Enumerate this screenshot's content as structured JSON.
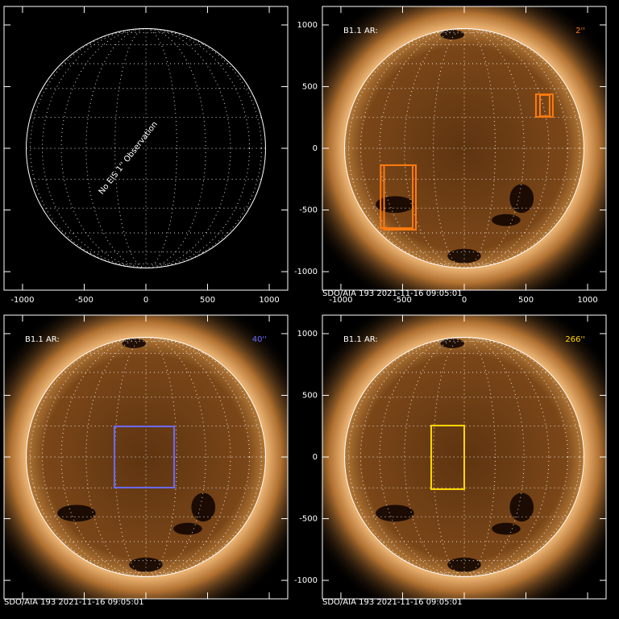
{
  "chart_data": [
    {
      "type": "grid",
      "annotation": "No EIS 1'' Observation",
      "solar_radius": 970,
      "xlim": [
        -1150,
        1150
      ],
      "ylim": [
        -1150,
        1150
      ],
      "xticks": [
        -1000,
        -500,
        0,
        500,
        1000
      ],
      "yticks": [
        -1000,
        -500,
        0,
        500,
        1000
      ],
      "xtick_labels": true,
      "ytick_labels": false
    },
    {
      "type": "image",
      "label": "B1.1 AR:",
      "note": "2''",
      "color": "#ff7a10",
      "footer": "SDO/AIA 193   2021-11-16 09:05:01",
      "solar_radius": 970,
      "xlim": [
        -1150,
        1150
      ],
      "ylim": [
        -1150,
        1150
      ],
      "xticks": [
        -1000,
        -500,
        0,
        500,
        1000
      ],
      "yticks": [
        -1000,
        -500,
        0,
        500,
        1000
      ],
      "xtick_labels": true,
      "ytick_labels": true,
      "boxes": [
        {
          "x": [
            -678,
            -418
          ],
          "y": [
            -137,
            -647
          ]
        },
        {
          "x": [
            -650,
            -392
          ],
          "y": [
            -137,
            -660
          ]
        },
        {
          "x": [
            581,
            718
          ],
          "y": [
            438,
            255
          ]
        },
        {
          "x": [
            614,
            692
          ],
          "y": [
            432,
            260
          ]
        }
      ]
    },
    {
      "type": "image",
      "label": "B1.1 AR:",
      "note": "40''",
      "color": "#6a6aff",
      "footer": "SDO/AIA 193   2021-11-16 09:05:01",
      "solar_radius": 970,
      "xlim": [
        -1150,
        1150
      ],
      "ylim": [
        -1150,
        1150
      ],
      "xticks": [
        -1000,
        -500,
        0,
        500,
        1000
      ],
      "yticks": [
        -1000,
        -500,
        0,
        500,
        1000
      ],
      "xtick_labels": false,
      "ytick_labels": false,
      "boxes": [
        {
          "x": [
            -255,
            229
          ],
          "y": [
            248,
            -248
          ]
        }
      ]
    },
    {
      "type": "image",
      "label": "B1.1 AR:",
      "note": "266''",
      "color": "#ffd700",
      "footer": "SDO/AIA 193   2021-11-16 09:05:01",
      "solar_radius": 970,
      "xlim": [
        -1150,
        1150
      ],
      "ylim": [
        -1150,
        1150
      ],
      "xticks": [
        -1000,
        -500,
        0,
        500,
        1000
      ],
      "yticks": [
        -1000,
        -500,
        0,
        500,
        1000
      ],
      "xtick_labels": false,
      "ytick_labels": true,
      "boxes": [
        {
          "x": [
            -268,
            0
          ],
          "y": [
            255,
            -261
          ]
        }
      ]
    }
  ]
}
